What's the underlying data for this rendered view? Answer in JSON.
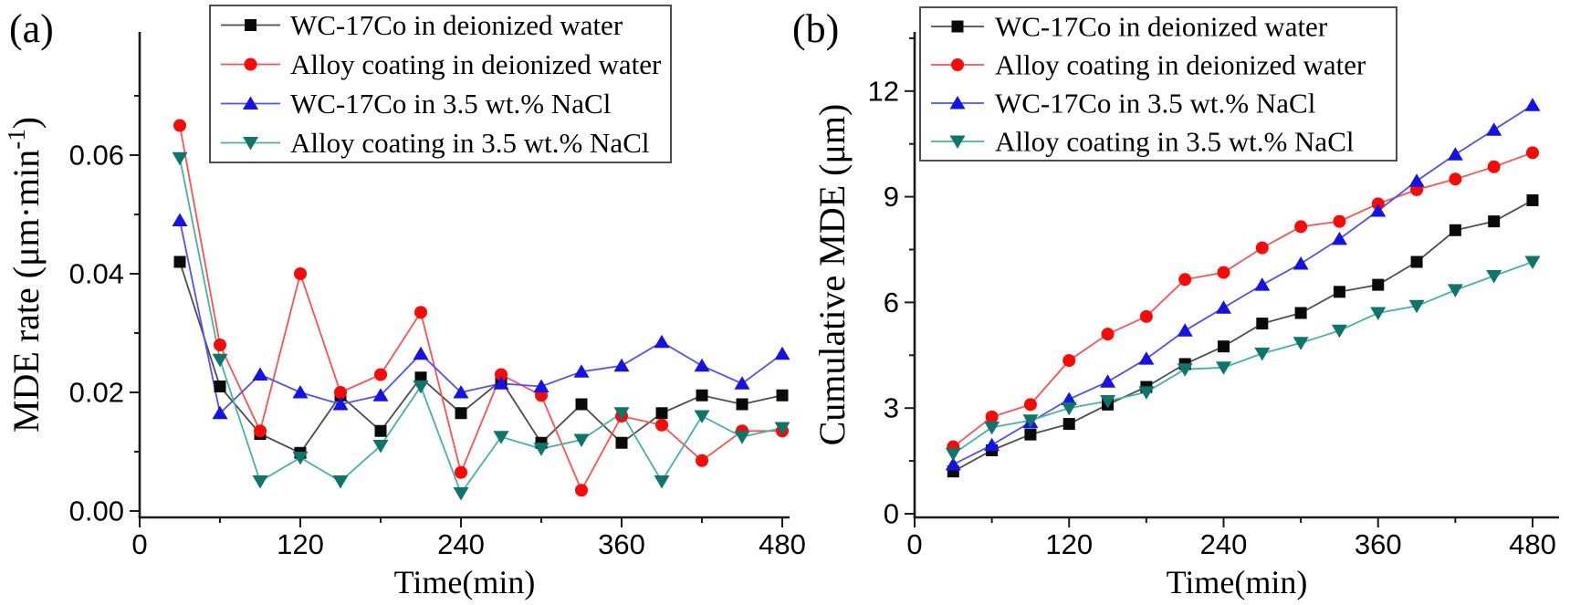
{
  "figure": {
    "description": "Two-panel line figure: (a) MDE rate vs time, (b) Cumulative MDE vs time"
  },
  "chart_data": [
    {
      "id": "a",
      "panel_label": "(a)",
      "type": "line",
      "title": "",
      "xlabel": "Time(min)",
      "ylabel": "MDE rate (μm·min⁻¹)",
      "ylabel_parts": {
        "pre": "MDE rate (μm·min",
        "sup": "-1",
        "post": ")"
      },
      "xlim": [
        0,
        486
      ],
      "ylim": [
        0,
        0.08
      ],
      "grid": false,
      "legend_position": "top-inside",
      "x_ticks": [
        0,
        120,
        240,
        360,
        480
      ],
      "x_tick_labels": [
        "0",
        "120",
        "240",
        "360",
        "480"
      ],
      "x_minor_ticks": [
        60,
        180,
        300,
        420
      ],
      "y_ticks": [
        0,
        0.02,
        0.04,
        0.06
      ],
      "y_tick_labels": [
        "0.00",
        "0.02",
        "0.04",
        "0.06"
      ],
      "y_minor_ticks": [
        0.01,
        0.03,
        0.05,
        0.07
      ],
      "x": [
        30,
        60,
        90,
        120,
        150,
        180,
        210,
        240,
        270,
        300,
        330,
        360,
        390,
        420,
        450,
        480
      ],
      "series": [
        {
          "name": "WC-17Co  in deionized water",
          "marker": "square",
          "line_color": "#4d4d4d",
          "marker_color": "#0a0a0a",
          "values": [
            0.042,
            0.021,
            0.013,
            0.0098,
            0.0195,
            0.0135,
            0.0225,
            0.0165,
            0.022,
            0.0115,
            0.018,
            0.0115,
            0.0165,
            0.0195,
            0.018,
            0.0195
          ]
        },
        {
          "name": "Alloy coating in deionized water",
          "marker": "circle",
          "line_color": "#ff5050",
          "marker_color": "#fb0807",
          "values": [
            0.065,
            0.028,
            0.0135,
            0.04,
            0.02,
            0.023,
            0.0335,
            0.0065,
            0.023,
            0.0195,
            0.0035,
            0.016,
            0.0145,
            0.0085,
            0.0135,
            0.0135
          ]
        },
        {
          "name": "WC-17Co in 3.5 wt.% NaCl",
          "marker": "triangle-up",
          "line_color": "#5050fa",
          "marker_color": "#1412e6",
          "values": [
            0.049,
            0.0165,
            0.023,
            0.02,
            0.018,
            0.0195,
            0.0265,
            0.02,
            0.0215,
            0.021,
            0.0235,
            0.0245,
            0.0285,
            0.0245,
            0.0215,
            0.0265
          ]
        },
        {
          "name": "Alloy coating in 3.5 wt.% NaCl",
          "marker": "triangle-down",
          "line_color": "#46b2a6",
          "marker_color": "#0e756d",
          "values": [
            0.0595,
            0.0255,
            0.005,
            0.009,
            0.005,
            0.011,
            0.021,
            0.003,
            0.0125,
            0.0105,
            0.012,
            0.0165,
            0.005,
            0.016,
            0.0125,
            0.014
          ]
        }
      ]
    },
    {
      "id": "b",
      "panel_label": "(b)",
      "type": "line",
      "title": "",
      "xlabel": "Time(min)",
      "ylabel": "Cumulative MDE (μm)",
      "xlim": [
        0,
        486
      ],
      "ylim": [
        0,
        13.7
      ],
      "grid": false,
      "legend_position": "top-inside",
      "x_ticks": [
        0,
        120,
        240,
        360,
        480
      ],
      "x_tick_labels": [
        "0",
        "120",
        "240",
        "360",
        "480"
      ],
      "x_minor_ticks": [
        60,
        180,
        300,
        420
      ],
      "y_ticks": [
        0,
        3,
        6,
        9,
        12
      ],
      "y_tick_labels": [
        "0",
        "3",
        "6",
        "9",
        "12"
      ],
      "y_minor_ticks": [
        1.5,
        4.5,
        7.5,
        10.5,
        13.5
      ],
      "x": [
        30,
        60,
        90,
        120,
        150,
        180,
        210,
        240,
        270,
        300,
        330,
        360,
        390,
        420,
        450,
        480
      ],
      "series": [
        {
          "name": "WC-17Co  in deionized water",
          "marker": "square",
          "line_color": "#4d4d4d",
          "marker_color": "#0a0a0a",
          "values": [
            1.2,
            1.8,
            2.25,
            2.55,
            3.1,
            3.6,
            4.25,
            4.75,
            5.4,
            5.7,
            6.3,
            6.5,
            7.15,
            8.05,
            8.3,
            8.9
          ]
        },
        {
          "name": "Alloy coating in deionized water",
          "marker": "circle",
          "line_color": "#ff5050",
          "marker_color": "#fb0807",
          "values": [
            1.9,
            2.75,
            3.1,
            4.35,
            5.1,
            5.6,
            6.65,
            6.85,
            7.55,
            8.15,
            8.3,
            8.8,
            9.2,
            9.5,
            9.85,
            10.25
          ]
        },
        {
          "name": "WC-17Co  in 3.5 wt.% NaCl",
          "marker": "triangle-up",
          "line_color": "#5050fa",
          "marker_color": "#1412e6",
          "values": [
            1.4,
            1.95,
            2.6,
            3.25,
            3.75,
            4.4,
            5.2,
            5.85,
            6.5,
            7.1,
            7.8,
            8.6,
            9.45,
            10.2,
            10.9,
            11.6
          ]
        },
        {
          "name": "Alloy coating in 3.5 wt.% NaCl",
          "marker": "triangle-down",
          "line_color": "#46b2a6",
          "marker_color": "#0e756d",
          "values": [
            1.7,
            2.45,
            2.65,
            3.0,
            3.2,
            3.45,
            4.1,
            4.15,
            4.55,
            4.85,
            5.2,
            5.7,
            5.9,
            6.35,
            6.75,
            7.15
          ]
        }
      ]
    }
  ]
}
